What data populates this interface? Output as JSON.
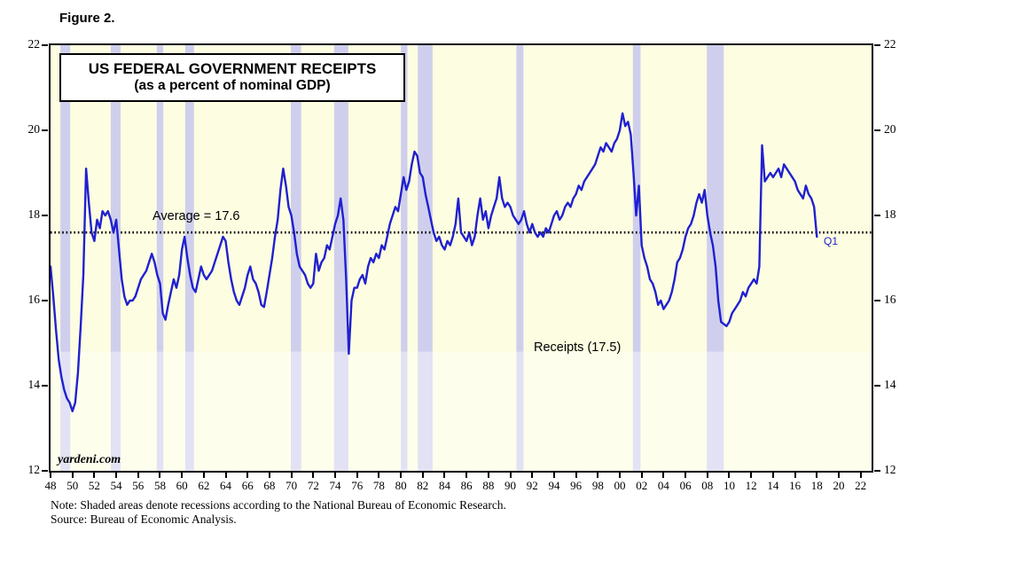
{
  "figure_label": "Figure 2.",
  "chart": {
    "title_line1": "US FEDERAL GOVERNMENT RECEIPTS",
    "title_line2": "(as a percent of nominal GDP)",
    "average_label": "Average = 17.6",
    "series_label": "Receipts (17.5)",
    "endpoint_label": "Q1",
    "watermark": "yardeni.com",
    "colors": {
      "background": "#fdfde1",
      "recession_band": "#cfcfed",
      "receipts_line": "#2020d0",
      "average_line": "#000000",
      "endpoint_label": "#2020d0"
    }
  },
  "notes": {
    "line1": "Note: Shaded areas denote recessions according to the National Bureau of Economic Research.",
    "line2": "Source: Bureau of Economic Analysis."
  },
  "chart_data": {
    "type": "line",
    "title": "US FEDERAL GOVERNMENT RECEIPTS (as a percent of nominal GDP)",
    "xlabel": "",
    "ylabel": "Percent of nominal GDP",
    "x_range": [
      1948,
      2023
    ],
    "y_range": [
      12,
      22
    ],
    "y_ticks": [
      22,
      20,
      18,
      16,
      14,
      12
    ],
    "x_ticks": [
      1948,
      1950,
      1952,
      1954,
      1956,
      1958,
      1960,
      1962,
      1964,
      1966,
      1968,
      1970,
      1972,
      1974,
      1976,
      1978,
      1980,
      1982,
      1984,
      1986,
      1988,
      1990,
      1992,
      1994,
      1996,
      1998,
      2000,
      2002,
      2004,
      2006,
      2008,
      2010,
      2012,
      2014,
      2016,
      2018,
      2020,
      2022
    ],
    "x_tick_labels": [
      "48",
      "50",
      "52",
      "54",
      "56",
      "58",
      "60",
      "62",
      "64",
      "66",
      "68",
      "70",
      "72",
      "74",
      "76",
      "78",
      "80",
      "82",
      "84",
      "86",
      "88",
      "90",
      "92",
      "94",
      "96",
      "98",
      "00",
      "02",
      "04",
      "06",
      "08",
      "10",
      "12",
      "14",
      "16",
      "18",
      "20",
      "22"
    ],
    "grid": false,
    "average_value": 17.6,
    "light_band_below": 14.8,
    "x_start": 1948,
    "x_step_years": 0.25,
    "x_end": 2018.0,
    "series": [
      {
        "name": "Receipts",
        "latest_value": 17.5,
        "values": [
          16.8,
          16.1,
          15.3,
          14.6,
          14.2,
          13.9,
          13.7,
          13.6,
          13.4,
          13.6,
          14.3,
          15.4,
          16.6,
          19.1,
          18.3,
          17.6,
          17.4,
          17.9,
          17.7,
          18.1,
          18.0,
          18.1,
          17.9,
          17.6,
          17.9,
          17.2,
          16.5,
          16.1,
          15.9,
          16.0,
          16.0,
          16.1,
          16.3,
          16.5,
          16.6,
          16.7,
          16.9,
          17.1,
          16.9,
          16.6,
          16.4,
          15.7,
          15.55,
          15.9,
          16.2,
          16.5,
          16.3,
          16.6,
          17.2,
          17.5,
          17.0,
          16.6,
          16.3,
          16.2,
          16.5,
          16.8,
          16.6,
          16.5,
          16.6,
          16.7,
          16.9,
          17.1,
          17.3,
          17.5,
          17.4,
          16.9,
          16.5,
          16.2,
          16.0,
          15.9,
          16.1,
          16.3,
          16.6,
          16.8,
          16.5,
          16.4,
          16.2,
          15.9,
          15.85,
          16.2,
          16.6,
          17.0,
          17.5,
          17.9,
          18.6,
          19.1,
          18.7,
          18.2,
          18.0,
          17.6,
          17.1,
          16.8,
          16.7,
          16.6,
          16.4,
          16.3,
          16.4,
          17.1,
          16.7,
          16.9,
          17.0,
          17.3,
          17.2,
          17.5,
          17.8,
          18.0,
          18.4,
          17.9,
          16.5,
          14.75,
          16.0,
          16.3,
          16.3,
          16.5,
          16.6,
          16.4,
          16.8,
          17.0,
          16.9,
          17.1,
          17.0,
          17.3,
          17.2,
          17.5,
          17.8,
          18.0,
          18.2,
          18.1,
          18.5,
          18.9,
          18.6,
          18.8,
          19.2,
          19.5,
          19.4,
          19.0,
          18.9,
          18.5,
          18.2,
          17.9,
          17.6,
          17.4,
          17.5,
          17.3,
          17.2,
          17.4,
          17.3,
          17.5,
          17.8,
          18.4,
          17.6,
          17.5,
          17.4,
          17.6,
          17.3,
          17.5,
          18.0,
          18.4,
          17.9,
          18.1,
          17.7,
          18.0,
          18.2,
          18.4,
          18.9,
          18.4,
          18.2,
          18.3,
          18.2,
          18.0,
          17.9,
          17.8,
          17.9,
          18.1,
          17.8,
          17.6,
          17.8,
          17.6,
          17.5,
          17.6,
          17.5,
          17.7,
          17.6,
          17.8,
          18.0,
          18.1,
          17.9,
          18.0,
          18.2,
          18.3,
          18.2,
          18.4,
          18.5,
          18.7,
          18.6,
          18.8,
          18.9,
          19.0,
          19.1,
          19.2,
          19.4,
          19.6,
          19.5,
          19.7,
          19.6,
          19.5,
          19.7,
          19.8,
          20.0,
          20.4,
          20.1,
          20.2,
          19.9,
          19.0,
          18.0,
          18.7,
          17.3,
          17.0,
          16.8,
          16.5,
          16.4,
          16.2,
          15.9,
          16.0,
          15.8,
          15.9,
          16.0,
          16.2,
          16.5,
          16.9,
          17.0,
          17.2,
          17.5,
          17.7,
          17.8,
          18.0,
          18.3,
          18.5,
          18.3,
          18.6,
          18.0,
          17.6,
          17.3,
          16.8,
          16.0,
          15.5,
          15.45,
          15.4,
          15.5,
          15.7,
          15.8,
          15.9,
          16.0,
          16.2,
          16.1,
          16.3,
          16.4,
          16.5,
          16.4,
          16.8,
          19.65,
          18.8,
          18.9,
          19.0,
          18.9,
          19.0,
          19.1,
          18.9,
          19.2,
          19.1,
          19.0,
          18.9,
          18.8,
          18.6,
          18.5,
          18.4,
          18.7,
          18.5,
          18.4,
          18.2,
          17.5
        ]
      }
    ],
    "recessions": [
      [
        1948.9,
        1949.8
      ],
      [
        1953.5,
        1954.4
      ],
      [
        1957.7,
        1958.3
      ],
      [
        1960.3,
        1961.1
      ],
      [
        1969.95,
        1970.9
      ],
      [
        1973.9,
        1975.2
      ],
      [
        1980.0,
        1980.6
      ],
      [
        1981.55,
        1982.9
      ],
      [
        1990.55,
        1991.2
      ],
      [
        2001.2,
        2001.9
      ],
      [
        2007.95,
        2009.5
      ]
    ],
    "legend_position": "none"
  }
}
